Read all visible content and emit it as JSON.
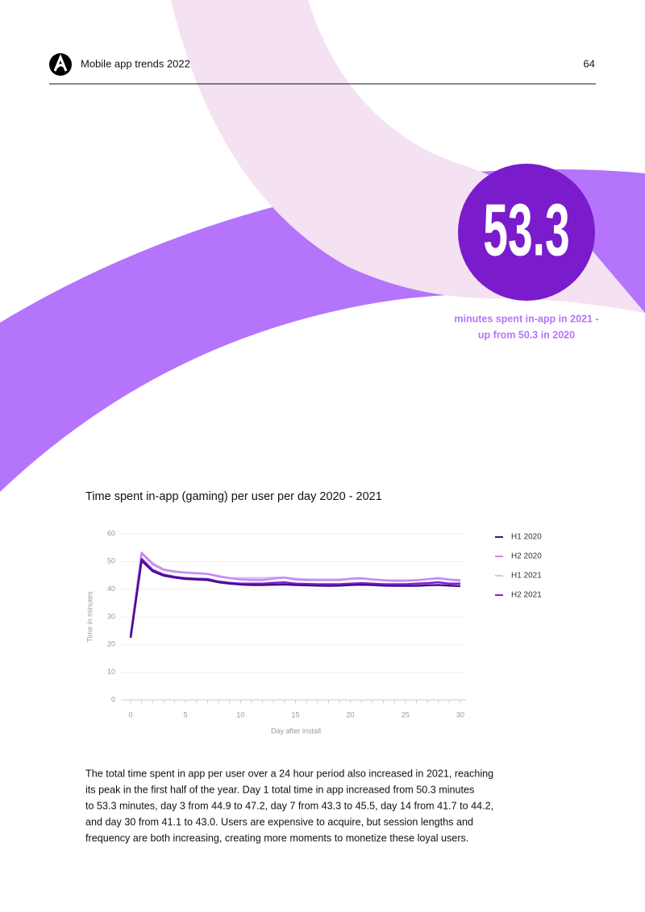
{
  "header": {
    "title": "Mobile app trends 2022",
    "page": "64"
  },
  "highlight": {
    "value": "53.3",
    "caption": [
      "minutes spent in-app in 2021 -",
      "up from 50.3 in 2020"
    ]
  },
  "chart_data": {
    "type": "line",
    "title": "Time spent in-app (gaming) per user per day 2020 - 2021",
    "xlabel": "Day after install",
    "ylabel": "Time in minutes",
    "x": [
      0,
      1,
      2,
      3,
      4,
      5,
      6,
      7,
      8,
      9,
      10,
      11,
      12,
      13,
      14,
      15,
      16,
      17,
      18,
      19,
      20,
      21,
      22,
      23,
      24,
      25,
      26,
      27,
      28,
      29,
      30
    ],
    "xlim": [
      0,
      30
    ],
    "xticks": [
      0,
      5,
      10,
      15,
      20,
      25,
      30
    ],
    "ylim": [
      0,
      60
    ],
    "yticks": [
      0,
      10,
      20,
      30,
      40,
      50,
      60
    ],
    "grid": true,
    "legend": "right",
    "series": [
      {
        "name": "H1 2020",
        "color": "#4b0c8c",
        "values": [
          22.5,
          50.3,
          46.5,
          44.9,
          44.2,
          43.7,
          43.5,
          43.3,
          42.5,
          42,
          41.7,
          41.5,
          41.5,
          41.6,
          41.7,
          41.5,
          41.4,
          41.3,
          41.2,
          41.3,
          41.5,
          41.6,
          41.5,
          41.3,
          41.2,
          41.2,
          41.2,
          41.4,
          41.5,
          41.3,
          41.1
        ]
      },
      {
        "name": "H2 2020",
        "color": "#c48cf2",
        "values": [
          23,
          53,
          49,
          47,
          46.3,
          46,
          45.8,
          45.5,
          44.7,
          44,
          43.5,
          43.3,
          43.3,
          43.8,
          44.2,
          43.5,
          43.3,
          43.3,
          43.3,
          43.3,
          43.8,
          44,
          43.5,
          43.2,
          43,
          43,
          43.2,
          43.6,
          44,
          43.5,
          43.2
        ]
      },
      {
        "name": "H1 2021",
        "color": "#dcbff7",
        "values": [
          23.5,
          53.3,
          49.5,
          47.2,
          46.5,
          46,
          45.7,
          45.5,
          44.5,
          44,
          44,
          44,
          44,
          44.2,
          44.2,
          43.8,
          43.6,
          43.5,
          43.5,
          43.5,
          43.7,
          43.8,
          43.6,
          43.3,
          43.2,
          43.2,
          43.3,
          43.6,
          43.8,
          43.4,
          43
        ]
      },
      {
        "name": "H2 2021",
        "color": "#7d22d6",
        "values": [
          22.5,
          51,
          47,
          45.3,
          44.5,
          44,
          43.8,
          43.7,
          42.8,
          42.3,
          42,
          42,
          42,
          42.3,
          42.5,
          42,
          41.9,
          41.8,
          41.8,
          41.8,
          42,
          42.2,
          42,
          41.8,
          41.8,
          41.8,
          42,
          42.2,
          42.5,
          42,
          42
        ]
      }
    ]
  },
  "body": {
    "lines": [
      "The total time spent in app per user over a 24 hour period also increased in 2021, reaching",
      "its peak in the first half of the year. Day 1 total time in app increased from 50.3 minutes",
      "to 53.3 minutes, day 3 from 44.9 to 47.2, day 7 from 43.3 to 45.5, day 14 from 41.7 to 44.2,",
      "and day 30 from 41.1 to 43.0. Users are expensive to acquire, but session lengths and",
      "frequency are both increasing, creating more moments to monetize these loyal users."
    ]
  }
}
